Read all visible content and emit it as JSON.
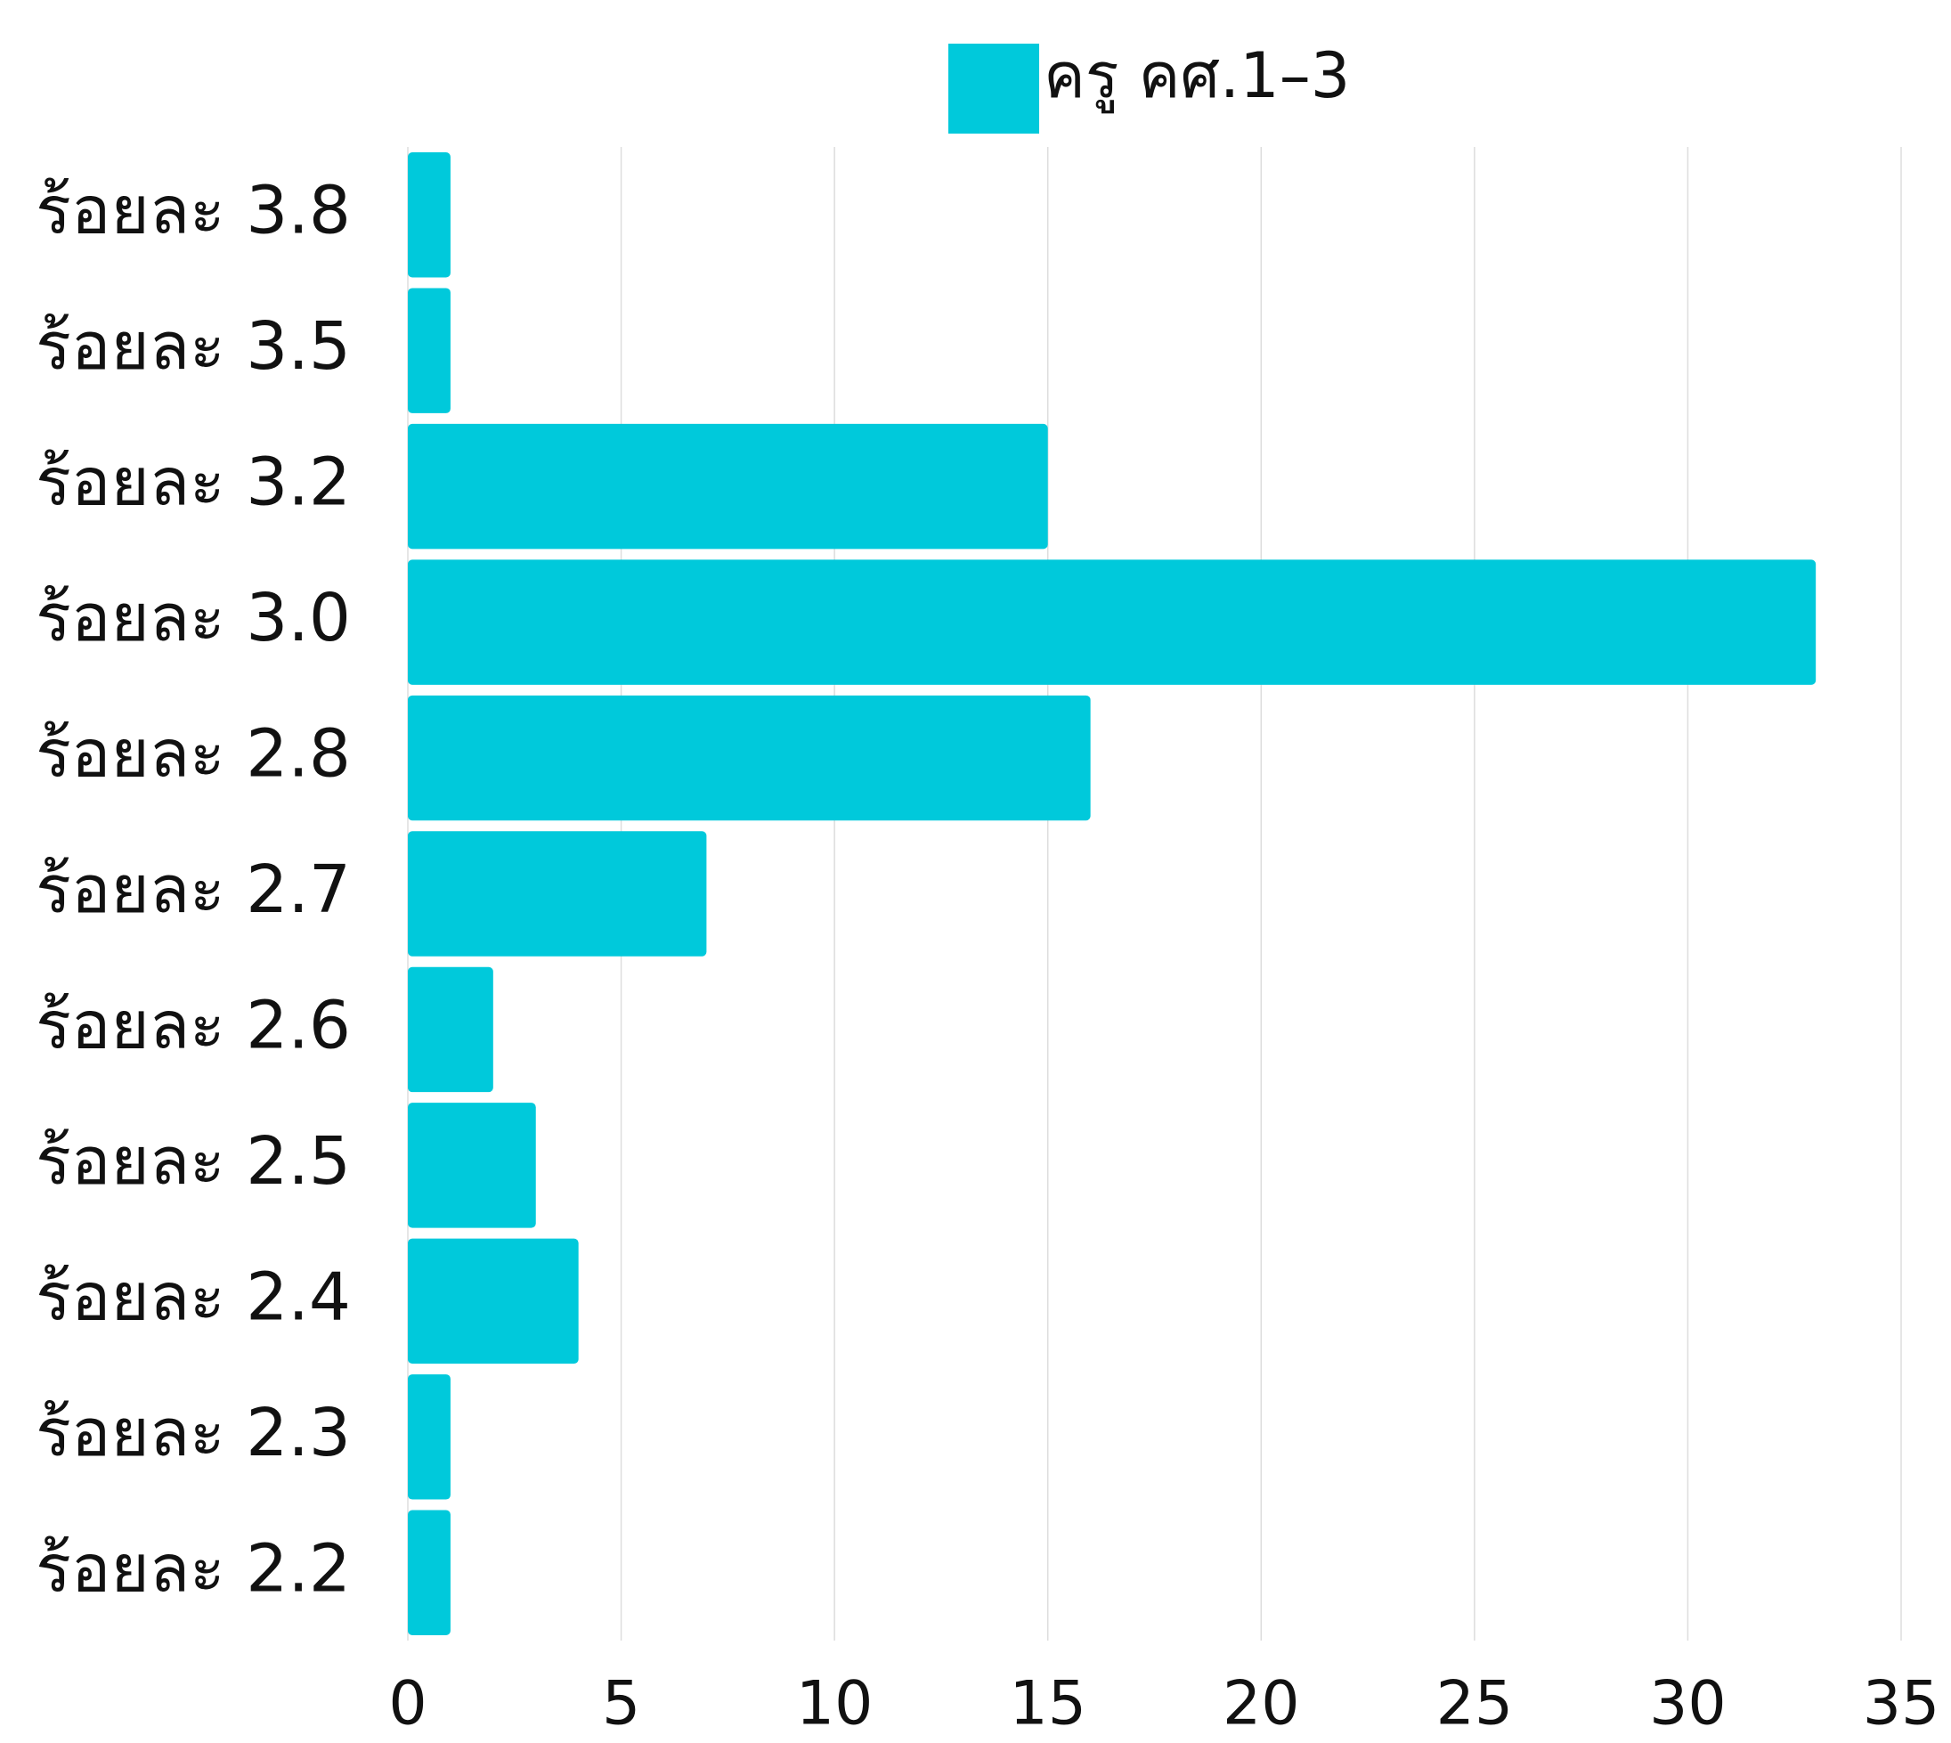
{
  "chart_data": {
    "type": "bar",
    "orientation": "horizontal",
    "categories": [
      "ร้อยละ 3.8",
      "ร้อยละ 3.5",
      "ร้อยละ 3.2",
      "ร้อยละ 3.0",
      "ร้อยละ 2.8",
      "ร้อยละ 2.7",
      "ร้อยละ 2.6",
      "ร้อยละ 2.5",
      "ร้อยละ 2.4",
      "ร้อยละ 2.3",
      "ร้อยละ 2.2"
    ],
    "series": [
      {
        "name": "ครู คศ.1–3",
        "color": "#00c9db",
        "values": [
          1,
          1,
          15,
          33,
          16,
          7,
          2,
          3,
          4,
          1,
          1
        ]
      }
    ],
    "xlim": [
      0,
      35
    ],
    "xticks": [
      0,
      5,
      10,
      15,
      20,
      25,
      30,
      35
    ],
    "grid": true,
    "legend": "top"
  }
}
